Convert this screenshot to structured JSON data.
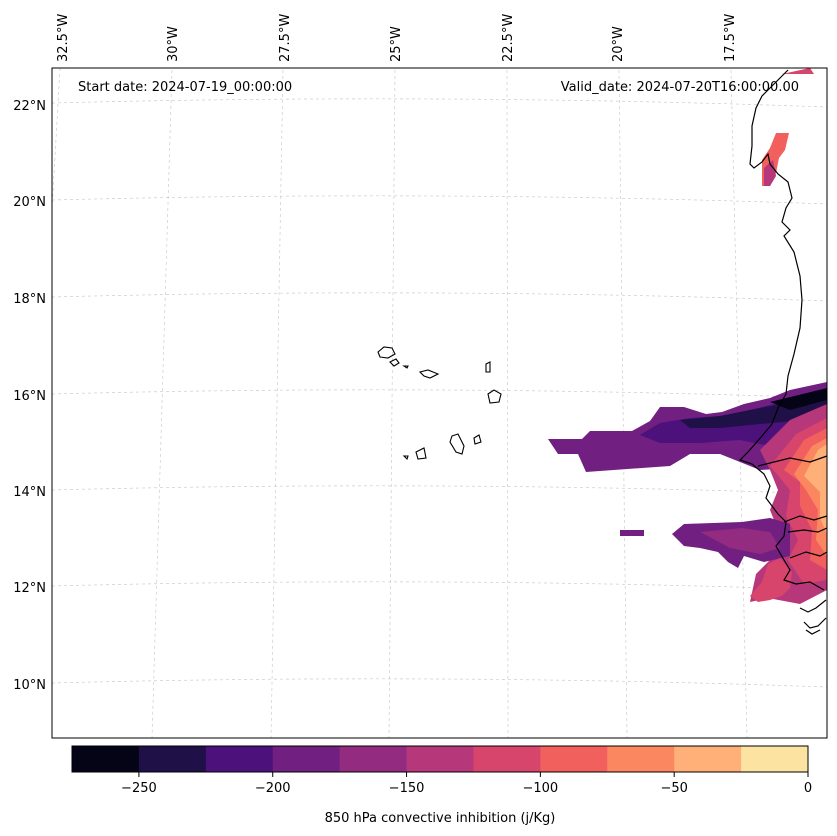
{
  "header": {
    "start_date": "Start date: 2024-07-19_00:00:00",
    "valid_date": "Valid_date: 2024-07-20T16:00:00.00"
  },
  "longitude_labels": [
    "32.5°W",
    "30°W",
    "27.5°W",
    "25°W",
    "22.5°W",
    "20°W",
    "17.5°W"
  ],
  "latitude_labels": [
    "22°N",
    "20°N",
    "18°N",
    "16°N",
    "14°N",
    "12°N",
    "10°N"
  ],
  "colorbar": {
    "label": "850 hPa convective inhibition (j/Kg)",
    "ticks": [
      "−250",
      "−200",
      "−150",
      "−100",
      "−50",
      "0"
    ],
    "levels": [
      -275,
      -250,
      -225,
      -200,
      -175,
      -150,
      -125,
      -100,
      -75,
      -50,
      -25,
      0
    ],
    "colors": [
      "#050416",
      "#1f1147",
      "#4c117a",
      "#711f81",
      "#932b80",
      "#b6377a",
      "#d8456c",
      "#f1605d",
      "#fb8761",
      "#feb078",
      "#fde3a2"
    ]
  },
  "colors": {
    "coastline": "#000000",
    "gridline": "#cccccc",
    "frame": "#000000"
  }
}
